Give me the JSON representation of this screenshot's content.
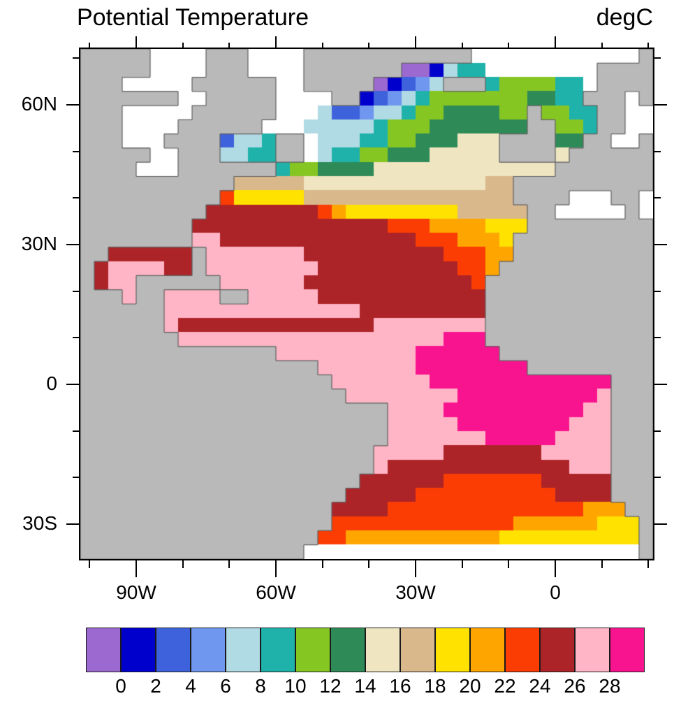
{
  "chart_data": {
    "type": "heatmap",
    "title": "Potential Temperature",
    "units": "degC",
    "x_axis": {
      "range": [
        -102,
        21
      ],
      "major_ticks": [
        {
          "value": -90,
          "label": "90W"
        },
        {
          "value": -60,
          "label": "60W"
        },
        {
          "value": -30,
          "label": "30W"
        },
        {
          "value": 0,
          "label": "0"
        }
      ],
      "minor_step": 10,
      "minor_range": [
        -100,
        20
      ]
    },
    "y_axis": {
      "range": [
        72,
        -37.5
      ],
      "major_ticks": [
        {
          "value": 60,
          "label": "60N"
        },
        {
          "value": 30,
          "label": "30N"
        },
        {
          "value": 0,
          "label": "0"
        },
        {
          "value": -30,
          "label": "30S"
        }
      ],
      "minor_step": 10,
      "minor_range": [
        70,
        -30
      ]
    },
    "levels": [
      0,
      2,
      4,
      6,
      8,
      10,
      12,
      14,
      16,
      18,
      20,
      22,
      24,
      26,
      28
    ],
    "colorbar_labels": [
      "0",
      "2",
      "4",
      "6",
      "8",
      "10",
      "12",
      "14",
      "16",
      "18",
      "20",
      "22",
      "24",
      "26",
      "28"
    ],
    "palette": [
      "#9B69CF",
      "#0000CD",
      "#3E62DB",
      "#6F97EF",
      "#B0DAE4",
      "#1FB2AA",
      "#86C623",
      "#2E8B57",
      "#EFE5C1",
      "#D9B88C",
      "#FFE200",
      "#FFA500",
      "#FB3D03",
      "#AD2428",
      "#FFB5C5",
      "#F9148F"
    ],
    "land_color": "#B9B9B9",
    "missing_color": "#FFFFFF",
    "coast_color": "#606060",
    "frame_color": "#000000",
    "legend_note": "band i of palette spans levels[i-1]..levels[i]; first band <0, last band >28",
    "grid": {
      "cols": 41,
      "rows": 36,
      "band_chars": "0123456789abcdef",
      "land_char": "L",
      "missing_char": ".",
      "cells": [
        "LLLLL....LLL....LLLLLLLLLLLL............L",
        "LLLLL....LLL....LLLLLLL001455........LLLL",
        "LLL.....LLLLLL..LLLLL01234LLL5666655.LLLL",
        "LLLLLLL..LLLLL....LL1234566666667755LLL.L",
        "LLL.....LLLLLL...422344566777766L6655LL..",
        "LLL....LLLLLL...4444456667777777LL665LL..",
        "LLL...LLLL2445LL.4445566777888LLLL77LL..L",
        "LLLLL..LLL4455LL.4556677788888LLLL8LLLLLL",
        "LLLL...LLLLLLL56677778888888888888LLLLLLL",
        "LLLLLLLLLLL99999888888888888899LLLLLLLLLL",
        "LLLLLLLLLLcaaaaa999999999999999LLLL...LL.",
        "LLLLLLLLLddddddddcbaaaaaaaa99999LL.....L.",
        "LLLLLLLLddddddddddddddcccbbbbaaaLLLLLLLLL",
        "LLLLLLLLeeddddddddddddddcccbbbaLLLLLLLLLL",
        "LLddddddLeeeeeeeddddddddddcccbbLLLLLLLLLL",
        "LdeeeeddLeeeeeeeeddddddddddccbLLLLLLLLLLL",
        "LdeeLLLLLLeeeeeeddddddddddddcLLLLLLLLLLLL",
        "LLLeLLeeeeLLeeeeeddddddddddddLLLLLLLLLLLL",
        "LLLLLLeeeeeeeeeeeeeedddddddddLLLLLLLLLLLL",
        "LLLLLLeddddddddddddddeeeeeeeeLLLLLLLLLLLL",
        "LLLLLLLeeeeeeeeeeeeeeeeeeefffLLLLLLLLLLLL",
        "LLLLLLLLLLLLLLeeeeeeeeeeffffffLLLLLLLLLLL",
        "LLLLLLLLLLLLLLLLLeeeeeeeffffffffLLLLLLLLL",
        "LLLLLLLLLLLLLLLLLLeeeeeeefffffffffffffLLL",
        "LLLLLLLLLLLLLLLLLLLeeeeeeeeffffffffffeLLL",
        "LLLLLLLLLLLLLLLLLLLLLLeeeeffffffffffeeLLL",
        "LLLLLLLLLLLLLLLLLLLLLLeeeeeffffffffeeeLLL",
        "LLLLLLLLLLLLLLLLLLLLLLeeeeeeefffffeeeeLLL",
        "LLLLLLLLLLLLLLLLLLLLLeeeeedddddddeeeeeLLL",
        "LLLLLLLLLLLLLLLLLLLLLedddddddddddddeeeLLL",
        "LLLLLLLLLLLLLLLLLLLLddddddcccccccdddddLLL",
        "LLLLLLLLLLLLLLLLLLLdddddccccccccccddddLLL",
        "LLLLLLLLLLLLLLLLLLddddccccccccccccccbbbLL",
        "LLLLLLLLLLLLLLLLLLcccccccccccccbbbbbbaaaL",
        "LLLLLLLLLLLLLLLLLccbbbbbbbbbbbaaaaaaaaaaL",
        "LLLLLLLLLLLLLLLL........................L"
      ]
    }
  }
}
